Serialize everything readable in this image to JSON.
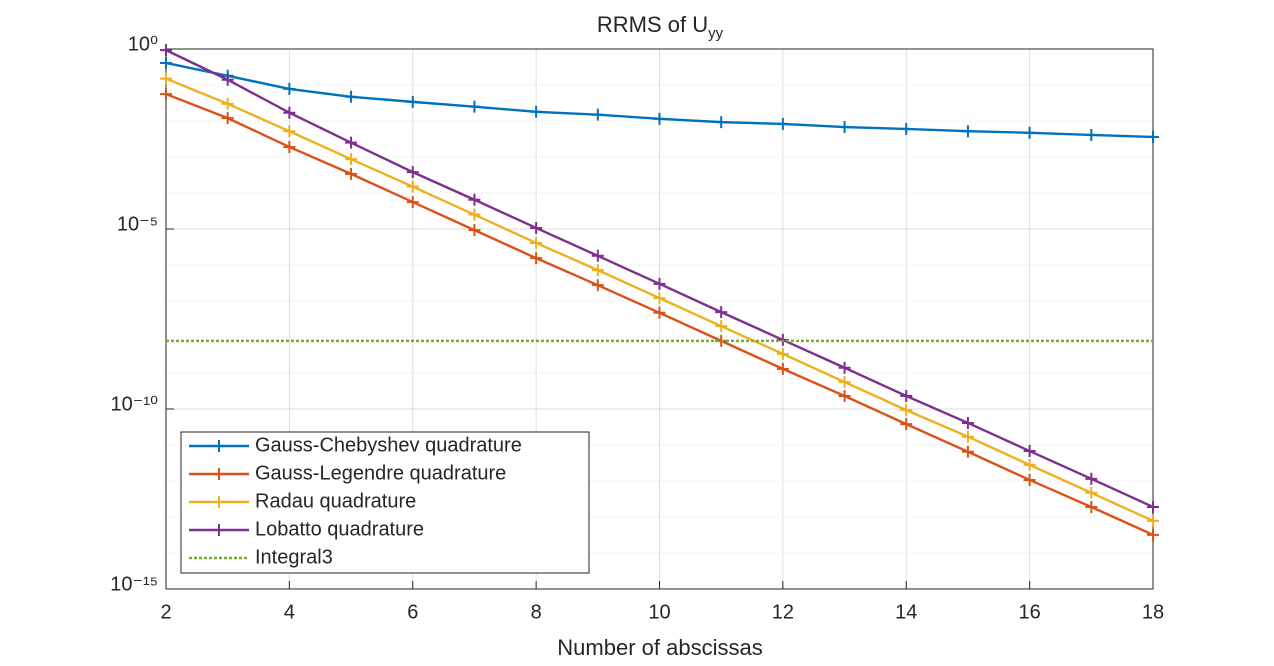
{
  "chart_data": {
    "type": "line",
    "title": "RRMS  of  U",
    "title_subscript": "yy",
    "xlabel": "Number of abscissas",
    "x": [
      2,
      3,
      4,
      5,
      6,
      7,
      8,
      9,
      10,
      11,
      12,
      13,
      14,
      15,
      16,
      17,
      18
    ],
    "xlim": [
      2,
      18
    ],
    "xticks": [
      2,
      4,
      6,
      8,
      10,
      12,
      14,
      16,
      18
    ],
    "ylim": [
      1e-15,
      1
    ],
    "log_y": true,
    "yticks": [
      {
        "value": 1e-15,
        "label": "10⁻¹⁵"
      },
      {
        "value": 1e-10,
        "label": "10⁻¹⁰"
      },
      {
        "value": 1e-05,
        "label": "10⁻⁵"
      },
      {
        "value": 1,
        "label": "10⁰"
      }
    ],
    "grid": true,
    "minor_grid": true,
    "legend_position": "lower left",
    "series": [
      {
        "name": "Gauss-Chebyshev quadrature",
        "color": "#0072bd",
        "marker": "+",
        "values": [
          0.41,
          0.18,
          0.078,
          0.047,
          0.034,
          0.025,
          0.018,
          0.015,
          0.0115,
          0.0093,
          0.0083,
          0.0068,
          0.006,
          0.0052,
          0.0047,
          0.0041,
          0.0036
        ]
      },
      {
        "name": "Gauss-Legendre quadrature",
        "color": "#d95319",
        "marker": "+",
        "values": [
          0.056,
          0.012,
          0.0019,
          0.00034,
          5.6e-05,
          9.3e-06,
          1.55e-06,
          2.75e-07,
          4.7e-08,
          7.8e-09,
          1.3e-09,
          2.3e-10,
          3.8e-11,
          6.5e-12,
          1.07e-12,
          1.9e-13,
          3.2e-14
        ]
      },
      {
        "name": "Radau quadrature",
        "color": "#edb120",
        "marker": "+",
        "values": [
          0.15,
          0.03,
          0.0052,
          0.00087,
          0.00015,
          2.5e-05,
          4.1e-06,
          7.2e-07,
          1.2e-07,
          2e-08,
          3.4e-09,
          5.6e-10,
          9.3e-11,
          1.7e-11,
          2.8e-12,
          4.7e-13,
          7.8e-14
        ]
      },
      {
        "name": "Lobatto quadrature",
        "color": "#7e2f8e",
        "marker": "+",
        "values": [
          0.93,
          0.14,
          0.017,
          0.0025,
          0.00038,
          6.5e-05,
          1.07e-05,
          1.8e-06,
          3e-07,
          4.9e-08,
          8.3e-09,
          1.4e-09,
          2.3e-10,
          4.1e-11,
          6.8e-12,
          1.15e-12,
          1.9e-13
        ]
      },
      {
        "name": "Integral3",
        "color": "#77ac30",
        "dashed": true,
        "values": [
          7.8e-09,
          7.8e-09,
          7.8e-09,
          7.8e-09,
          7.8e-09,
          7.8e-09,
          7.8e-09,
          7.8e-09,
          7.8e-09,
          7.8e-09,
          7.8e-09,
          7.8e-09,
          7.8e-09,
          7.8e-09,
          7.8e-09,
          7.8e-09,
          7.8e-09
        ]
      }
    ]
  }
}
